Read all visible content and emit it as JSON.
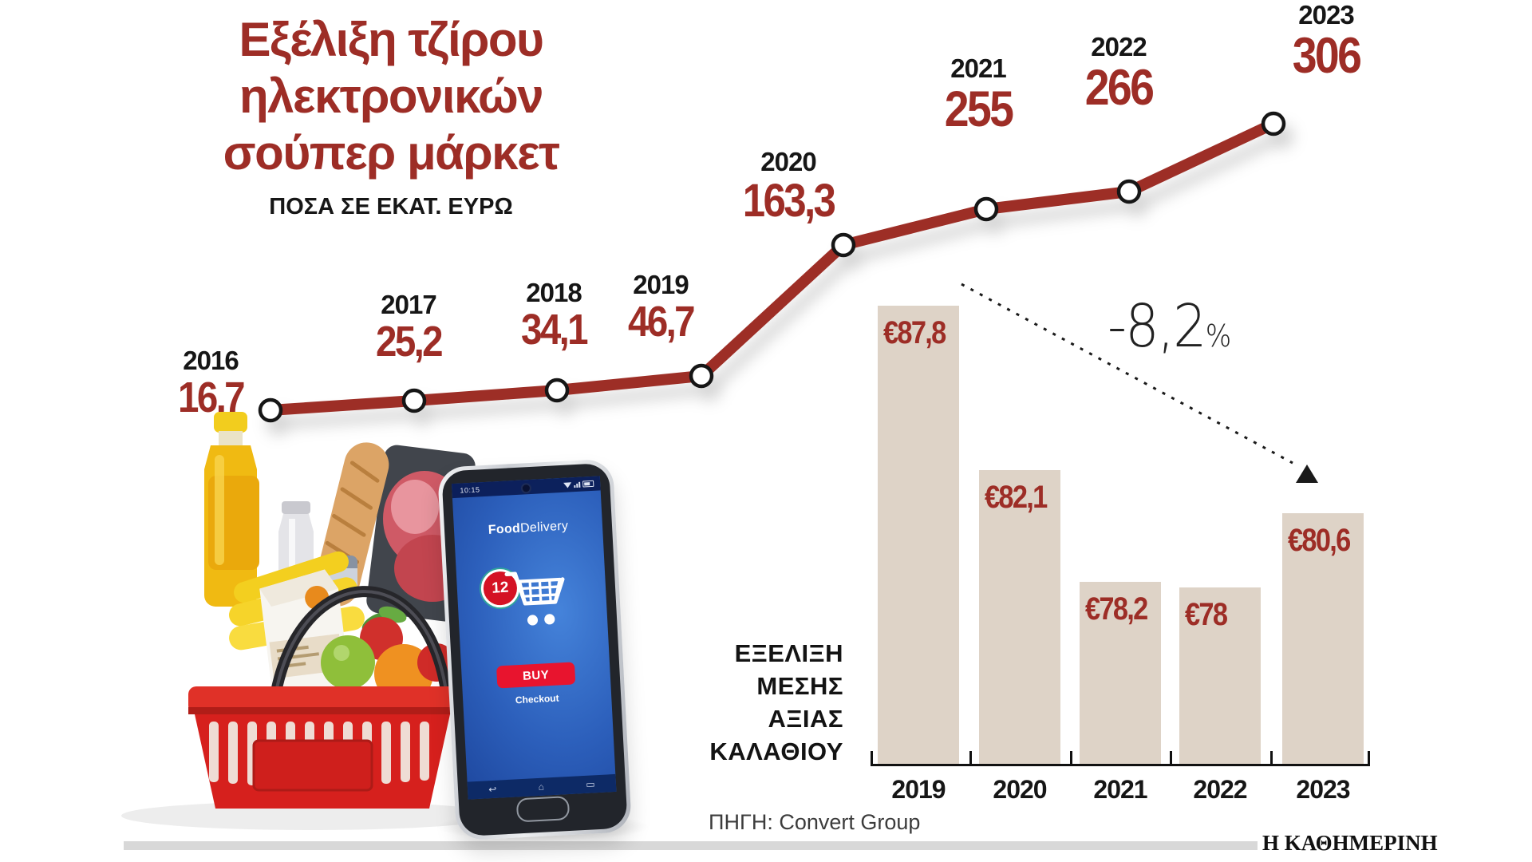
{
  "header": {
    "title_lines": [
      "Εξέλιξη τζίρου",
      "ηλεκτρονικών",
      "σούπερ μάρκετ"
    ],
    "subtitle": "ΠΟΣΑ ΣΕ ΕΚΑΤ. ΕΥΡΩ"
  },
  "chart_data": [
    {
      "type": "line",
      "title": "Εξέλιξη τζίρου ηλεκτρονικών σούπερ μάρκετ",
      "subtitle": "ΠΟΣΑ ΣΕ ΕΚΑΤ. ΕΥΡΩ",
      "categories": [
        "2016",
        "2017",
        "2018",
        "2019",
        "2020",
        "2021",
        "2022",
        "2023"
      ],
      "values": [
        16.7,
        25.2,
        34.1,
        46.7,
        163.3,
        255,
        266,
        306
      ],
      "value_labels": [
        "16,7",
        "25,2",
        "34,1",
        "46,7",
        "163,3",
        "255",
        "266",
        "306"
      ],
      "line_color": "#9d2d26",
      "marker": "white-circle-black-ring",
      "grid": false,
      "legend": false
    },
    {
      "type": "bar",
      "title": "ΕΞΕΛΙΞΗ ΜΕΣΗΣ ΑΞΙΑΣ ΚΑΛΑΘΙΟΥ",
      "categories": [
        "2019",
        "2020",
        "2021",
        "2022",
        "2023"
      ],
      "values": [
        87.8,
        82.1,
        78.2,
        78,
        80.6
      ],
      "value_labels": [
        "€87,8",
        "€82,1",
        "€78,2",
        "€78",
        "€80,6"
      ],
      "bar_color": "#ded3c7",
      "annotation": "-8,2%",
      "baseline_not_zero": true
    }
  ],
  "bar_caption": {
    "lines": [
      "ΕΞΕΛΙΞΗ",
      "ΜΕΣΗΣ",
      "ΑΞΙΑΣ",
      "ΚΑΛΑΘΙΟΥ"
    ]
  },
  "annotation": {
    "value": "-8,2",
    "percent": "%"
  },
  "source": "ΠΗΓΗ: Convert Group",
  "brand": "Η ΚΑΘΗΜΕΡΙΝΗ",
  "phone": {
    "status_time": "10:15",
    "app_title_bold": "Food",
    "app_title_rest": "Delivery",
    "cart_badge": "12",
    "buy_label": "BUY",
    "checkout_label": "Checkout"
  },
  "colors": {
    "accent_red": "#9d2d26",
    "bar_beige": "#ded3c7",
    "ink": "#161616",
    "strip_gray": "#d8d8d8",
    "phone_screen_blue": "#2c5fbb",
    "buy_red": "#e8142e"
  }
}
